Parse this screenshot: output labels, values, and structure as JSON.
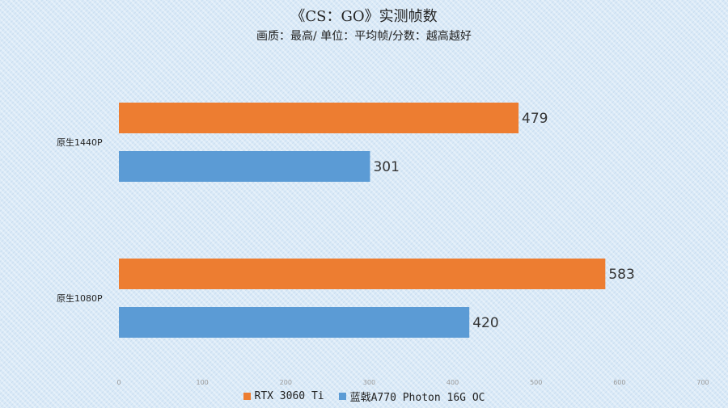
{
  "chart_data": {
    "type": "bar",
    "orientation": "horizontal",
    "title": "《CS：GO》实测帧数",
    "subtitle": "画质：最高/ 单位：平均帧/分数：越高越好",
    "categories": [
      "原生1440P",
      "原生1080P"
    ],
    "series": [
      {
        "name": "RTX 3060 Ti",
        "color": "#ed7d31",
        "values": [
          479,
          583
        ]
      },
      {
        "name": "蓝戟A770 Photon 16G OC",
        "color": "#5b9bd5",
        "values": [
          301,
          420
        ]
      }
    ],
    "xlim": [
      0,
      700
    ],
    "xticks": [
      "0",
      "100",
      "200",
      "300",
      "400",
      "500",
      "600",
      "700"
    ],
    "legend_position": "bottom",
    "grid": false
  }
}
